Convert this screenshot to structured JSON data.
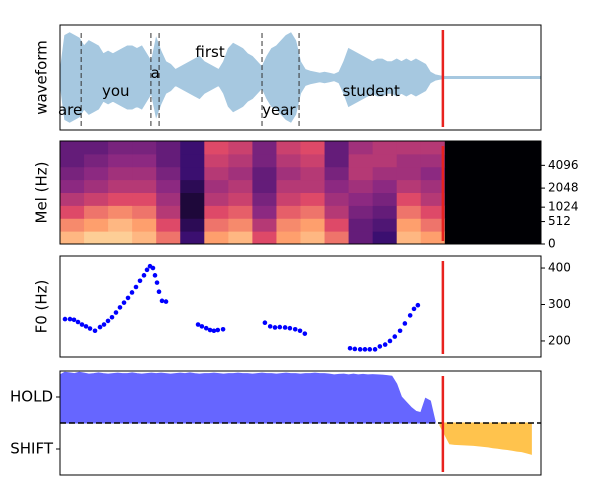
{
  "chart_data": [
    {
      "type": "waveform",
      "ylabel": "waveform",
      "color": "#a6c8e0",
      "xlim": [
        0,
        100
      ],
      "ylim": [
        -1,
        1
      ],
      "values": [
        0.1,
        0.8,
        0.85,
        0.8,
        0.75,
        0.6,
        0.7,
        0.65,
        0.6,
        0.45,
        0.5,
        0.45,
        0.5,
        0.55,
        0.6,
        0.6,
        0.55,
        0.6,
        0.45,
        0.3,
        0.75,
        0.5,
        0.3,
        0.25,
        0.15,
        0.2,
        0.25,
        0.3,
        0.35,
        0.4,
        0.3,
        0.25,
        0.2,
        0.15,
        0.3,
        0.55,
        0.65,
        0.6,
        0.55,
        0.45,
        0.4,
        0.3,
        0.2,
        0.4,
        0.55,
        0.6,
        0.7,
        0.8,
        0.85,
        0.7,
        0.3,
        0.15,
        0.12,
        0.1,
        0.08,
        0.1,
        0.08,
        0.06,
        0.1,
        0.3,
        0.55,
        0.5,
        0.45,
        0.4,
        0.35,
        0.3,
        0.35,
        0.35,
        0.3,
        0.3,
        0.35,
        0.3,
        0.35,
        0.3,
        0.35,
        0.3,
        0.25,
        0.1,
        0.05,
        0.03,
        0.02,
        0.02,
        0.02,
        0.02,
        0.02,
        0.02,
        0.02,
        0.02,
        0.02,
        0.02,
        0.02,
        0.02,
        0.02,
        0.02,
        0.02,
        0.02,
        0.02,
        0.02,
        0.02,
        0.02,
        0.02
      ],
      "boundaries": [
        4.4,
        18.9,
        20.6,
        42.0,
        49.7
      ],
      "boundary_color": "#333333",
      "words": [
        {
          "text": "are",
          "x": 2.1,
          "y": -0.63
        },
        {
          "text": "you",
          "x": 11.6,
          "y": -0.27
        },
        {
          "text": "a",
          "x": 19.8,
          "y": 0.08
        },
        {
          "text": "first",
          "x": 31.2,
          "y": 0.48
        },
        {
          "text": "year",
          "x": 45.5,
          "y": -0.63
        },
        {
          "text": "student",
          "x": 64.7,
          "y": -0.27
        }
      ],
      "cursor": 79.6,
      "cursor_color": "#e8221e"
    },
    {
      "type": "heatmap",
      "ylabel": "Mel (Hz)",
      "xlim": [
        0,
        100
      ],
      "ylim": [
        0,
        8000
      ],
      "yscale": "mel",
      "ytick_side": "right",
      "yticks": [
        0,
        512,
        1024,
        2048,
        4096
      ],
      "zlim": [
        0,
        1
      ],
      "colorscale": [
        "#000004",
        "#3b0f70",
        "#8c2981",
        "#de4968",
        "#fe9f6d",
        "#fcfdbf"
      ],
      "z": [
        [
          0.85,
          0.9,
          0.9,
          0.85,
          0.7,
          0.2,
          0.8,
          0.85,
          0.6,
          0.8,
          0.85,
          0.7,
          0.3,
          0.2,
          0.85,
          0.8,
          0,
          0,
          0,
          0
        ],
        [
          0.75,
          0.8,
          0.85,
          0.8,
          0.6,
          0.15,
          0.7,
          0.75,
          0.5,
          0.75,
          0.8,
          0.6,
          0.3,
          0.25,
          0.8,
          0.7,
          0,
          0,
          0,
          0
        ],
        [
          0.6,
          0.7,
          0.75,
          0.7,
          0.5,
          0.1,
          0.6,
          0.65,
          0.4,
          0.65,
          0.7,
          0.5,
          0.35,
          0.3,
          0.7,
          0.6,
          0,
          0,
          0,
          0
        ],
        [
          0.5,
          0.55,
          0.6,
          0.6,
          0.45,
          0.1,
          0.5,
          0.55,
          0.35,
          0.55,
          0.6,
          0.45,
          0.4,
          0.35,
          0.6,
          0.5,
          0,
          0,
          0,
          0
        ],
        [
          0.4,
          0.45,
          0.5,
          0.5,
          0.4,
          0.15,
          0.45,
          0.5,
          0.3,
          0.5,
          0.5,
          0.4,
          0.45,
          0.4,
          0.5,
          0.45,
          0,
          0,
          0,
          0
        ],
        [
          0.35,
          0.4,
          0.45,
          0.45,
          0.35,
          0.2,
          0.5,
          0.45,
          0.3,
          0.45,
          0.5,
          0.35,
          0.5,
          0.45,
          0.45,
          0.4,
          0,
          0,
          0,
          0
        ],
        [
          0.3,
          0.35,
          0.4,
          0.4,
          0.3,
          0.2,
          0.55,
          0.5,
          0.35,
          0.5,
          0.55,
          0.3,
          0.5,
          0.5,
          0.45,
          0.45,
          0,
          0,
          0,
          0
        ],
        [
          0.3,
          0.3,
          0.35,
          0.35,
          0.3,
          0.2,
          0.6,
          0.55,
          0.35,
          0.55,
          0.6,
          0.3,
          0.45,
          0.5,
          0.5,
          0.5,
          0,
          0,
          0,
          0
        ]
      ],
      "cursor": 79.6,
      "cursor_color": "#e8221e"
    },
    {
      "type": "scatter",
      "ylabel": "F0 (Hz)",
      "xlim": [
        0,
        100
      ],
      "ylim": [
        156,
        433
      ],
      "ytick_side": "right",
      "yticks": [
        200,
        300,
        400
      ],
      "color": "#0000ff",
      "x": [
        1.04,
        2.08,
        2.91,
        3.74,
        4.57,
        5.41,
        6.24,
        7.28,
        8.32,
        9.15,
        9.98,
        10.81,
        11.64,
        12.47,
        13.31,
        14.14,
        14.97,
        15.8,
        16.63,
        17.46,
        18.09,
        18.71,
        19.33,
        19.75,
        20.17,
        20.58,
        21.21,
        22.04,
        28.7,
        29.5,
        30.4,
        31.2,
        32.0,
        32.8,
        33.9,
        42.6,
        43.7,
        44.7,
        45.7,
        46.8,
        47.8,
        48.9,
        49.9,
        50.9,
        60.3,
        61.3,
        62.4,
        63.4,
        64.4,
        65.5,
        66.5,
        67.6,
        68.6,
        69.6,
        70.7,
        71.7,
        72.8,
        73.6,
        74.4
      ],
      "values": [
        260,
        260,
        258,
        252,
        245,
        240,
        234,
        228,
        238,
        245,
        255,
        265,
        278,
        292,
        305,
        318,
        333,
        348,
        365,
        380,
        395,
        405,
        400,
        380,
        360,
        335,
        310,
        308,
        245,
        240,
        235,
        230,
        228,
        230,
        232,
        250,
        240,
        237,
        238,
        237,
        235,
        232,
        228,
        220,
        180,
        178,
        177,
        177,
        177,
        177,
        185,
        190,
        200,
        212,
        228,
        248,
        270,
        288,
        298
      ],
      "cursor": 79.6,
      "cursor_color": "#e8221e"
    },
    {
      "type": "area",
      "xlim": [
        0,
        100
      ],
      "ylim": [
        -2,
        2
      ],
      "ytick_side": "left",
      "yticks": [
        {
          "value": 1,
          "label": "HOLD"
        },
        {
          "value": -1,
          "label": "SHIFT"
        }
      ],
      "pos_color": "#6666ff",
      "neg_color": "#ffc34d",
      "baseline_style": "dashed",
      "values": [
        1.85,
        1.95,
        1.93,
        1.9,
        1.95,
        1.92,
        1.88,
        1.9,
        1.93,
        1.9,
        1.88,
        1.9,
        1.92,
        1.9,
        1.9,
        1.93,
        1.9,
        1.88,
        1.9,
        1.92,
        1.9,
        1.92,
        1.9,
        1.88,
        1.9,
        1.92,
        1.9,
        1.93,
        1.9,
        1.88,
        1.9,
        1.9,
        1.92,
        1.9,
        1.88,
        1.9,
        1.9,
        1.92,
        1.9,
        1.9,
        1.88,
        1.9,
        1.92,
        1.9,
        1.9,
        1.88,
        1.9,
        1.92,
        1.9,
        1.9,
        1.88,
        1.9,
        1.9,
        1.92,
        1.9,
        1.9,
        1.88,
        1.85,
        1.87,
        1.88,
        1.85,
        1.88,
        1.85,
        1.87,
        1.85,
        1.86,
        1.85,
        1.84,
        1.82,
        1.8,
        1.5,
        1.0,
        0.8,
        0.6,
        0.45,
        0.4,
        0.95,
        0.85,
        0.05,
        -0.1,
        -0.45,
        -0.8,
        -0.82,
        -0.83,
        -0.84,
        -0.85,
        -0.86,
        -0.88,
        -0.9,
        -0.92,
        -0.95,
        -0.97,
        -1.0,
        -1.02,
        -1.05,
        -1.08,
        -1.1,
        -1.15,
        -1.2
      ],
      "cursor": 79.6,
      "cursor_color": "#e8221e"
    }
  ]
}
